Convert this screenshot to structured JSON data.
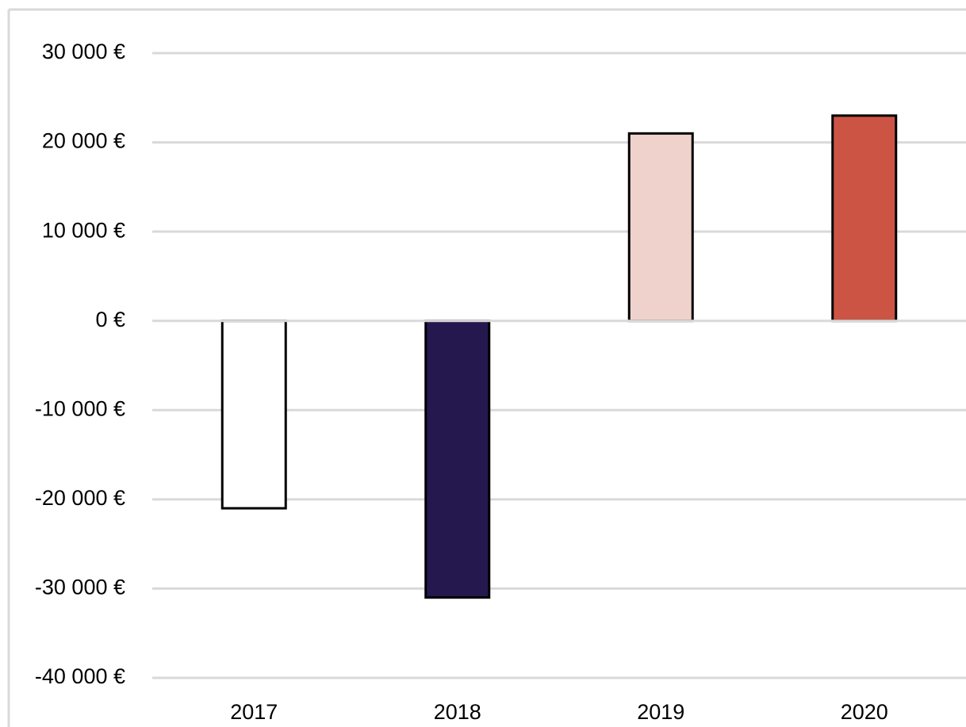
{
  "chart_data": {
    "type": "bar",
    "categories": [
      "2017",
      "2018",
      "2019",
      "2020"
    ],
    "values": [
      -21000,
      -31000,
      21000,
      23000
    ],
    "colors": [
      "#ffffff",
      "#25184f",
      "#f0d2cc",
      "#cc5444"
    ],
    "ylim": [
      -40000,
      30000
    ],
    "yticks": [
      {
        "value": -40000,
        "label": "-40 000 €"
      },
      {
        "value": -30000,
        "label": "-30 000 €"
      },
      {
        "value": -20000,
        "label": "-20 000 €"
      },
      {
        "value": -10000,
        "label": "-10 000 €"
      },
      {
        "value": 0,
        "label": "0 €"
      },
      {
        "value": 10000,
        "label": "10 000 €"
      },
      {
        "value": 20000,
        "label": "20 000 €"
      },
      {
        "value": 30000,
        "label": "30 000 €"
      }
    ],
    "grid": true
  }
}
